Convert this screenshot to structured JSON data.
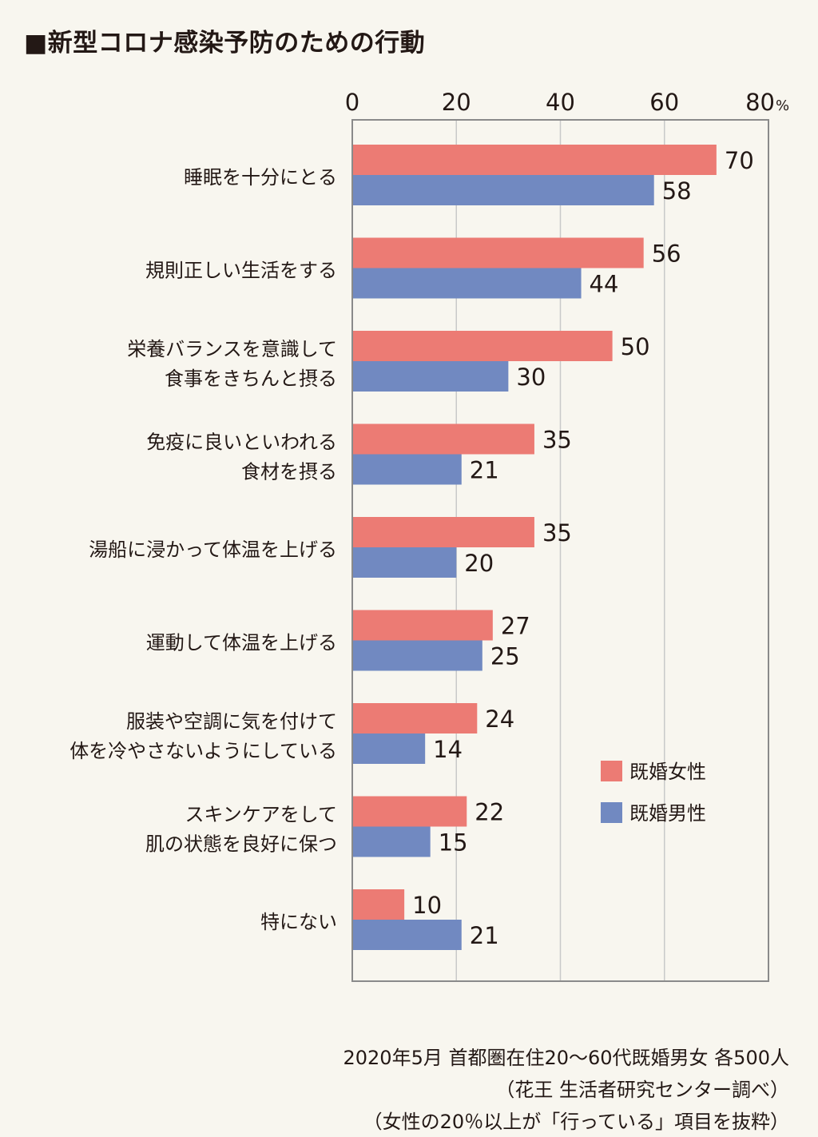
{
  "title": "■新型コロナ感染予防のための行動",
  "colors": {
    "female": "#ec7b74",
    "male": "#7189c1",
    "axis": "#8a8a8a",
    "grid": "#c9c9c9",
    "background": "#f8f6ef"
  },
  "chart_data": {
    "type": "bar",
    "orientation": "horizontal",
    "title": "新型コロナ感染予防のための行動",
    "xlim": [
      0,
      80
    ],
    "x_ticks": [
      "0",
      "20",
      "40",
      "60",
      "80"
    ],
    "x_unit": "%",
    "grid": true,
    "legend_position": "bottom-right",
    "categories": [
      [
        "睡眠を十分にとる"
      ],
      [
        "規則正しい生活をする"
      ],
      [
        "栄養バランスを意識して",
        "食事をきちんと摂る"
      ],
      [
        "免疫に良いといわれる",
        "食材を摂る"
      ],
      [
        "湯船に浸かって体温を上げる"
      ],
      [
        "運動して体温を上げる"
      ],
      [
        "服装や空調に気を付けて",
        "体を冷やさないようにしている"
      ],
      [
        "スキンケアをして",
        "肌の状態を良好に保つ"
      ],
      [
        "特にない"
      ]
    ],
    "series": [
      {
        "name": "既婚女性",
        "color": "#ec7b74",
        "values": [
          70,
          56,
          50,
          35,
          35,
          27,
          24,
          22,
          10
        ]
      },
      {
        "name": "既婚男性",
        "color": "#7189c1",
        "values": [
          58,
          44,
          30,
          21,
          20,
          25,
          14,
          15,
          21
        ]
      }
    ]
  },
  "footer": {
    "line1": "2020年5月 首都圏在住20〜60代既婚男女 各500人",
    "line2": "（花王 生活者研究センター調べ）",
    "line3": "（女性の20％以上が「行っている」項目を抜粋）"
  }
}
